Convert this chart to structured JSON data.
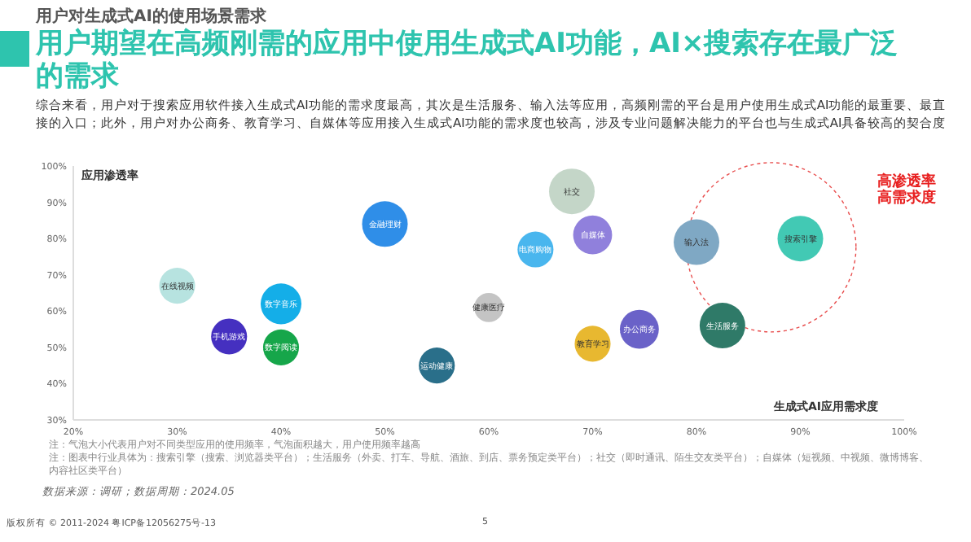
{
  "chart_data": {
    "type": "bubble",
    "title": "用户期望在高频刚需的应用中使用生成式AI功能，AI×搜索存在最广泛的需求",
    "subtitle": "综合来看，用户对于搜索应用软件接入生成式AI功能的需求度最高，其次是生活服务、输入法等应用，高频刚需的平台是用户使用生成式AI功能的最重要、最直接的入口；此外，用户对办公商务、教育学习、自媒体等应用接入生成式AI功能的需求度也较高，涉及专业问题解决能力的平台也与生成式AI具备较高的契合度",
    "xlabel": "生成式AI应用需求度",
    "ylabel": "应用渗透率",
    "series": [
      {
        "name": "在线视频",
        "color": "#b7e3e0",
        "x": [
          30
        ],
        "values": [
          67
        ],
        "sizes": [
          0.62
        ]
      },
      {
        "name": "手机游戏",
        "color": "#4530c0",
        "x": [
          35
        ],
        "values": [
          53
        ],
        "sizes": [
          0.62
        ]
      },
      {
        "name": "数字音乐",
        "color": "#14aee8",
        "x": [
          40
        ],
        "values": [
          62
        ],
        "sizes": [
          0.8
        ]
      },
      {
        "name": "数字阅读",
        "color": "#16a64a",
        "x": [
          40
        ],
        "values": [
          50
        ],
        "sizes": [
          0.62
        ]
      },
      {
        "name": "金融理财",
        "color": "#2f8ee8",
        "x": [
          50
        ],
        "values": [
          84
        ],
        "sizes": [
          1
        ]
      },
      {
        "name": "运动健康",
        "color": "#2a6f8a",
        "x": [
          55
        ],
        "values": [
          45
        ],
        "sizes": [
          0.62
        ]
      },
      {
        "name": "健康医疗",
        "color": "#c4c4c4",
        "x": [
          60
        ],
        "values": [
          61
        ],
        "sizes": [
          0.41
        ]
      },
      {
        "name": "电商购物",
        "color": "#49b6ee",
        "x": [
          64.5
        ],
        "values": [
          77
        ],
        "sizes": [
          0.62
        ]
      },
      {
        "name": "社交",
        "color": "#c4d6c8",
        "x": [
          68
        ],
        "values": [
          93
        ],
        "sizes": [
          1
        ]
      },
      {
        "name": "自媒体",
        "color": "#9080dc",
        "x": [
          70
        ],
        "values": [
          81
        ],
        "sizes": [
          0.73
        ]
      },
      {
        "name": "教育学习",
        "color": "#e8b830",
        "x": [
          70
        ],
        "values": [
          51
        ],
        "sizes": [
          0.62
        ]
      },
      {
        "name": "办公商务",
        "color": "#6a62c8",
        "x": [
          74.5
        ],
        "values": [
          55
        ],
        "sizes": [
          0.73
        ]
      },
      {
        "name": "输入法",
        "color": "#7fa8c4",
        "x": [
          80
        ],
        "values": [
          79
        ],
        "sizes": [
          1
        ]
      },
      {
        "name": "生活服务",
        "color": "#2f7a68",
        "x": [
          82.5
        ],
        "values": [
          56
        ],
        "sizes": [
          1
        ]
      },
      {
        "name": "搜索引擎",
        "color": "#42c9b4",
        "x": [
          90
        ],
        "values": [
          80
        ],
        "sizes": [
          1
        ]
      }
    ],
    "xlim": [
      20,
      100
    ],
    "ylim": [
      30,
      100
    ],
    "xticks": [
      {
        "value": 20,
        "label": "20%"
      },
      {
        "value": 30,
        "label": "30%"
      },
      {
        "value": 40,
        "label": "40%"
      },
      {
        "value": 50,
        "label": "50%"
      },
      {
        "value": 60,
        "label": "60%"
      },
      {
        "value": 70,
        "label": "70%"
      },
      {
        "value": 80,
        "label": "80%"
      },
      {
        "value": 90,
        "label": "90%"
      },
      {
        "value": 100,
        "label": "100%"
      }
    ],
    "yticks": [
      {
        "value": 30,
        "label": "30%"
      },
      {
        "value": 40,
        "label": "40%"
      },
      {
        "value": 50,
        "label": "50%"
      },
      {
        "value": 60,
        "label": "60%"
      },
      {
        "value": 70,
        "label": "70%"
      },
      {
        "value": 80,
        "label": "80%"
      },
      {
        "value": 90,
        "label": "90%"
      },
      {
        "value": 100,
        "label": "100%"
      }
    ],
    "annotations": [
      "用户对生成式AI的使用场景需求",
      "高渗透率高需求度",
      "注：气泡大小代表用户对不同类型应用的使用频率，气泡面积越大，用户使用频率越高",
      "注：图表中行业具体为：搜索引擎（搜索、浏览器类平台）；生活服务（外卖、打车、导航、酒旅、到店、票务预定类平台）；社交（即时通讯、陌生交友类平台）；自媒体（短视频、中视频、微博博客、内容社区类平台）",
      "数据来源：调研；数据周期：2024.05",
      "版权所有 © 2011-2024 粤ICP备12056275号-13",
      "5"
    ],
    "grid": false
  }
}
